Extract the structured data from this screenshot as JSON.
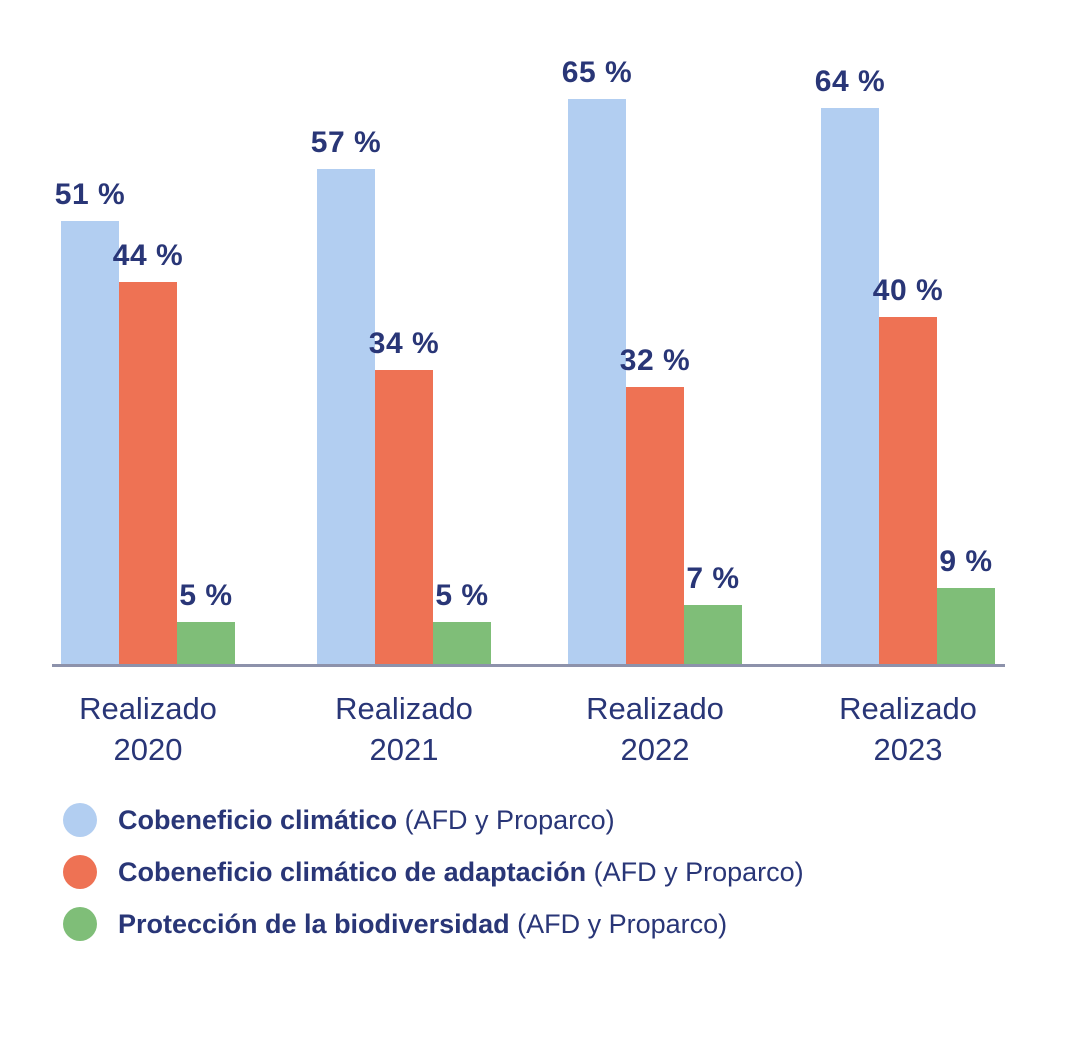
{
  "chart_data": {
    "type": "bar",
    "categories": [
      {
        "line1": "Realizado",
        "line2": "2020"
      },
      {
        "line1": "Realizado",
        "line2": "2021"
      },
      {
        "line1": "Realizado",
        "line2": "2022"
      },
      {
        "line1": "Realizado",
        "line2": "2023"
      }
    ],
    "series": [
      {
        "key": "cobeneficio-climatico",
        "name": "Cobeneficio climático",
        "qualifier": "(AFD y Proparco)",
        "color": "#b2cef1",
        "values": [
          51,
          57,
          65,
          64
        ]
      },
      {
        "key": "cobeneficio-climatico-adaptacion",
        "name": "Cobeneficio climático de adaptación",
        "qualifier": "(AFD y Proparco)",
        "color": "#ee7254",
        "values": [
          44,
          34,
          32,
          40
        ]
      },
      {
        "key": "proteccion-biodiversidad",
        "name": "Protección de la biodiversidad",
        "qualifier": "(AFD y Proparco)",
        "color": "#7fbe78",
        "values": [
          5,
          5,
          7,
          9
        ]
      }
    ],
    "value_suffix": " %",
    "title": "",
    "xlabel": "",
    "ylabel": "",
    "ylim": [
      0,
      100
    ],
    "grid": false,
    "legend_position": "bottom-left"
  },
  "style": {
    "text_color": "#293677",
    "axis_color": "#8d92ab",
    "background": "#ffffff"
  }
}
